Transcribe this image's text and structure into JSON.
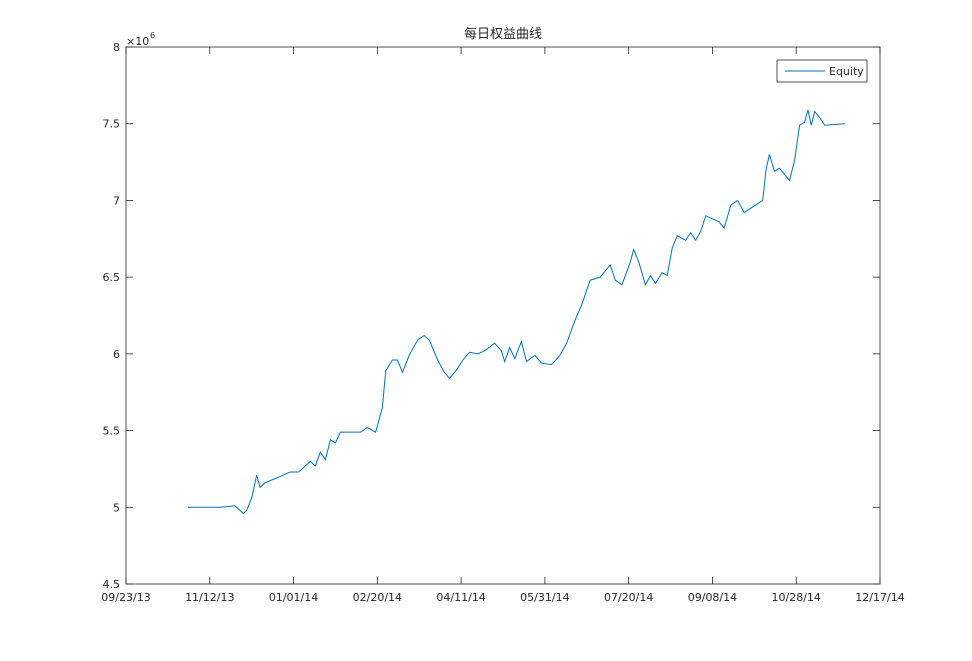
{
  "chart_data": {
    "type": "line",
    "title": "每日权益曲线",
    "x": [
      "10/30/13",
      "11/19/13",
      "11/27/13",
      "11/30/13",
      "12/02/13",
      "12/04/13",
      "12/07/13",
      "12/10/13",
      "12/12/13",
      "12/15/13",
      "12/26/13",
      "12/30/13",
      "01/04/14",
      "01/08/14",
      "01/11/14",
      "01/14/14",
      "01/17/14",
      "01/20/14",
      "01/23/14",
      "01/26/14",
      "01/29/14",
      "02/10/14",
      "02/14/14",
      "02/19/14",
      "02/23/14",
      "02/25/14",
      "03/01/14",
      "03/04/14",
      "03/07/14",
      "03/11/14",
      "03/16/14",
      "03/20/14",
      "03/23/14",
      "03/28/14",
      "04/01/14",
      "04/04/14",
      "04/08/14",
      "04/12/14",
      "04/16/14",
      "04/21/14",
      "04/25/14",
      "05/01/14",
      "05/05/14",
      "05/07/14",
      "05/10/14",
      "05/13/14",
      "05/17/14",
      "05/20/14",
      "05/25/14",
      "05/29/14",
      "06/04/14",
      "06/09/14",
      "06/13/14",
      "06/18/14",
      "06/22/14",
      "06/27/14",
      "07/03/14",
      "07/09/14",
      "07/12/14",
      "07/16/14",
      "07/21/14",
      "07/23/14",
      "07/26/14",
      "07/30/14",
      "08/02/14",
      "08/05/14",
      "08/09/14",
      "08/12/14",
      "08/15/14",
      "08/18/14",
      "08/23/14",
      "08/26/14",
      "08/29/14",
      "09/01/14",
      "09/04/14",
      "09/08/14",
      "09/12/14",
      "09/15/14",
      "09/19/14",
      "09/23/14",
      "09/27/14",
      "10/01/14",
      "10/08/14",
      "10/10/14",
      "10/12/14",
      "10/15/14",
      "10/18/14",
      "10/21/14",
      "10/24/14",
      "10/27/14",
      "10/30/14",
      "11/02/14",
      "11/04/14",
      "11/06/14",
      "11/08/14",
      "11/11/14",
      "11/14/14",
      "11/26/14"
    ],
    "series": [
      {
        "name": "Equity",
        "color": "#0072bd",
        "values": [
          5.0,
          5.0,
          5.01,
          4.98,
          4.96,
          4.98,
          5.06,
          5.21,
          5.13,
          5.16,
          5.21,
          5.23,
          5.23,
          5.27,
          5.3,
          5.27,
          5.36,
          5.31,
          5.44,
          5.42,
          5.49,
          5.49,
          5.52,
          5.49,
          5.65,
          5.89,
          5.96,
          5.96,
          5.88,
          5.99,
          6.09,
          6.12,
          6.09,
          5.96,
          5.88,
          5.84,
          5.89,
          5.96,
          6.01,
          6.0,
          6.02,
          6.07,
          6.02,
          5.95,
          6.04,
          5.97,
          6.08,
          5.95,
          5.99,
          5.94,
          5.93,
          5.99,
          6.07,
          6.22,
          6.32,
          6.48,
          6.5,
          6.58,
          6.48,
          6.45,
          6.6,
          6.68,
          6.6,
          6.45,
          6.51,
          6.46,
          6.53,
          6.51,
          6.69,
          6.77,
          6.74,
          6.79,
          6.74,
          6.8,
          6.9,
          6.88,
          6.86,
          6.82,
          6.97,
          7.0,
          6.92,
          6.95,
          7.0,
          7.2,
          7.3,
          7.19,
          7.21,
          7.17,
          7.13,
          7.26,
          7.49,
          7.51,
          7.59,
          7.49,
          7.58,
          7.54,
          7.49,
          7.5
        ]
      }
    ],
    "xlim": [
      "09/23/13",
      "12/17/14"
    ],
    "xticks": [
      "09/23/13",
      "11/12/13",
      "01/01/14",
      "02/20/14",
      "04/11/14",
      "05/31/14",
      "07/20/14",
      "09/08/14",
      "10/28/14",
      "12/17/14"
    ],
    "ylim": [
      4.5,
      8
    ],
    "yticks": [
      4.5,
      5,
      5.5,
      6,
      6.5,
      7,
      7.5,
      8
    ],
    "y_multiplier": "×10",
    "y_multiplier_power": "6",
    "legend": "northeast",
    "grid": false
  }
}
